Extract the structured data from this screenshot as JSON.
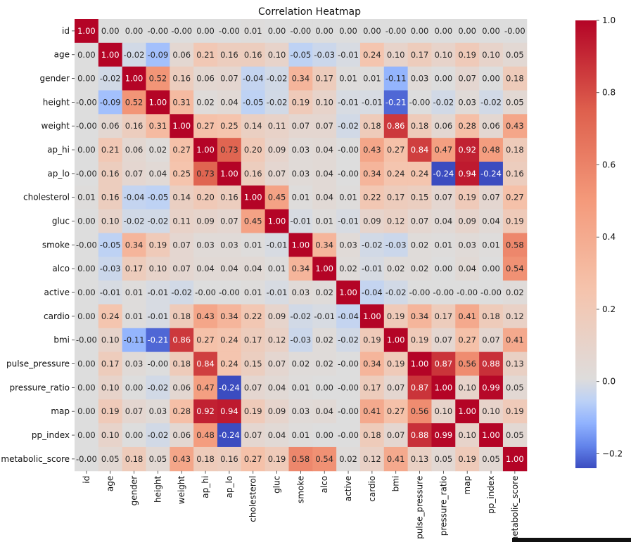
{
  "chart_data": {
    "type": "heatmap",
    "title": "Correlation Heatmap",
    "labels": [
      "id",
      "age",
      "gender",
      "height",
      "weight",
      "ap_hi",
      "ap_lo",
      "cholesterol",
      "gluc",
      "smoke",
      "alco",
      "active",
      "cardio",
      "bmi",
      "pulse_pressure",
      "pressure_ratio",
      "map",
      "pp_index",
      "metabolic_score"
    ],
    "values": [
      [
        1.0,
        0.0,
        0.0,
        -0.0,
        -0.0,
        0.0,
        -0.0,
        0.01,
        0.0,
        -0.0,
        0.0,
        0.0,
        0.0,
        -0.0,
        0.0,
        0.0,
        0.0,
        0.0,
        -0.0
      ],
      [
        0.0,
        1.0,
        -0.02,
        -0.09,
        0.06,
        0.21,
        0.16,
        0.16,
        0.1,
        -0.05,
        -0.03,
        -0.01,
        0.24,
        0.1,
        0.17,
        0.1,
        0.19,
        0.1,
        0.05
      ],
      [
        0.0,
        -0.02,
        1.0,
        0.52,
        0.16,
        0.06,
        0.07,
        -0.04,
        -0.02,
        0.34,
        0.17,
        0.01,
        0.01,
        -0.11,
        0.03,
        0.0,
        0.07,
        0.0,
        0.18
      ],
      [
        -0.0,
        -0.09,
        0.52,
        1.0,
        0.31,
        0.02,
        0.04,
        -0.05,
        -0.02,
        0.19,
        0.1,
        -0.01,
        -0.01,
        -0.21,
        -0.0,
        -0.02,
        0.03,
        -0.02,
        0.05
      ],
      [
        -0.0,
        0.06,
        0.16,
        0.31,
        1.0,
        0.27,
        0.25,
        0.14,
        0.11,
        0.07,
        0.07,
        -0.02,
        0.18,
        0.86,
        0.18,
        0.06,
        0.28,
        0.06,
        0.43
      ],
      [
        0.0,
        0.21,
        0.06,
        0.02,
        0.27,
        1.0,
        0.73,
        0.2,
        0.09,
        0.03,
        0.04,
        -0.0,
        0.43,
        0.27,
        0.84,
        0.47,
        0.92,
        0.48,
        0.18
      ],
      [
        -0.0,
        0.16,
        0.07,
        0.04,
        0.25,
        0.73,
        1.0,
        0.16,
        0.07,
        0.03,
        0.04,
        -0.0,
        0.34,
        0.24,
        0.24,
        -0.24,
        0.94,
        -0.24,
        0.16
      ],
      [
        0.01,
        0.16,
        -0.04,
        -0.05,
        0.14,
        0.2,
        0.16,
        1.0,
        0.45,
        0.01,
        0.04,
        0.01,
        0.22,
        0.17,
        0.15,
        0.07,
        0.19,
        0.07,
        0.27
      ],
      [
        0.0,
        0.1,
        -0.02,
        -0.02,
        0.11,
        0.09,
        0.07,
        0.45,
        1.0,
        -0.01,
        0.01,
        -0.01,
        0.09,
        0.12,
        0.07,
        0.04,
        0.09,
        0.04,
        0.19
      ],
      [
        -0.0,
        -0.05,
        0.34,
        0.19,
        0.07,
        0.03,
        0.03,
        0.01,
        -0.01,
        1.0,
        0.34,
        0.03,
        -0.02,
        -0.03,
        0.02,
        0.01,
        0.03,
        0.01,
        0.58
      ],
      [
        0.0,
        -0.03,
        0.17,
        0.1,
        0.07,
        0.04,
        0.04,
        0.04,
        0.01,
        0.34,
        1.0,
        0.02,
        -0.01,
        0.02,
        0.02,
        0.0,
        0.04,
        0.0,
        0.54
      ],
      [
        0.0,
        -0.01,
        0.01,
        -0.01,
        -0.02,
        -0.0,
        -0.0,
        0.01,
        -0.01,
        0.03,
        0.02,
        1.0,
        -0.04,
        -0.02,
        -0.0,
        -0.0,
        -0.0,
        -0.0,
        0.02
      ],
      [
        0.0,
        0.24,
        0.01,
        -0.01,
        0.18,
        0.43,
        0.34,
        0.22,
        0.09,
        -0.02,
        -0.01,
        -0.04,
        1.0,
        0.19,
        0.34,
        0.17,
        0.41,
        0.18,
        0.12
      ],
      [
        -0.0,
        0.1,
        -0.11,
        -0.21,
        0.86,
        0.27,
        0.24,
        0.17,
        0.12,
        -0.03,
        0.02,
        -0.02,
        0.19,
        1.0,
        0.19,
        0.07,
        0.27,
        0.07,
        0.41
      ],
      [
        0.0,
        0.17,
        0.03,
        -0.0,
        0.18,
        0.84,
        0.24,
        0.15,
        0.07,
        0.02,
        0.02,
        -0.0,
        0.34,
        0.19,
        1.0,
        0.87,
        0.56,
        0.88,
        0.13
      ],
      [
        0.0,
        0.1,
        0.0,
        -0.02,
        0.06,
        0.47,
        -0.24,
        0.07,
        0.04,
        0.01,
        0.0,
        -0.0,
        0.17,
        0.07,
        0.87,
        1.0,
        0.1,
        0.99,
        0.05
      ],
      [
        0.0,
        0.19,
        0.07,
        0.03,
        0.28,
        0.92,
        0.94,
        0.19,
        0.09,
        0.03,
        0.04,
        -0.0,
        0.41,
        0.27,
        0.56,
        0.1,
        1.0,
        0.1,
        0.19
      ],
      [
        0.0,
        0.1,
        0.0,
        -0.02,
        0.06,
        0.48,
        -0.24,
        0.07,
        0.04,
        0.01,
        0.0,
        -0.0,
        0.18,
        0.07,
        0.88,
        0.99,
        0.1,
        1.0,
        0.05
      ],
      [
        -0.0,
        0.05,
        0.18,
        0.05,
        0.43,
        0.18,
        0.16,
        0.27,
        0.19,
        0.58,
        0.54,
        0.02,
        0.12,
        0.41,
        0.13,
        0.05,
        0.19,
        0.05,
        1.0
      ]
    ],
    "colormap": "coolwarm",
    "vmin": -0.24,
    "vmax": 1.0,
    "colorbar_ticks": [
      1.0,
      0.8,
      0.6,
      0.4,
      0.2,
      0.0,
      -0.2
    ],
    "colorbar_tick_labels": [
      "1.0",
      "0.8",
      "0.6",
      "0.4",
      "0.2",
      "0.0",
      "−0.2"
    ],
    "annotation_format": "2 decimals",
    "grid": false
  }
}
